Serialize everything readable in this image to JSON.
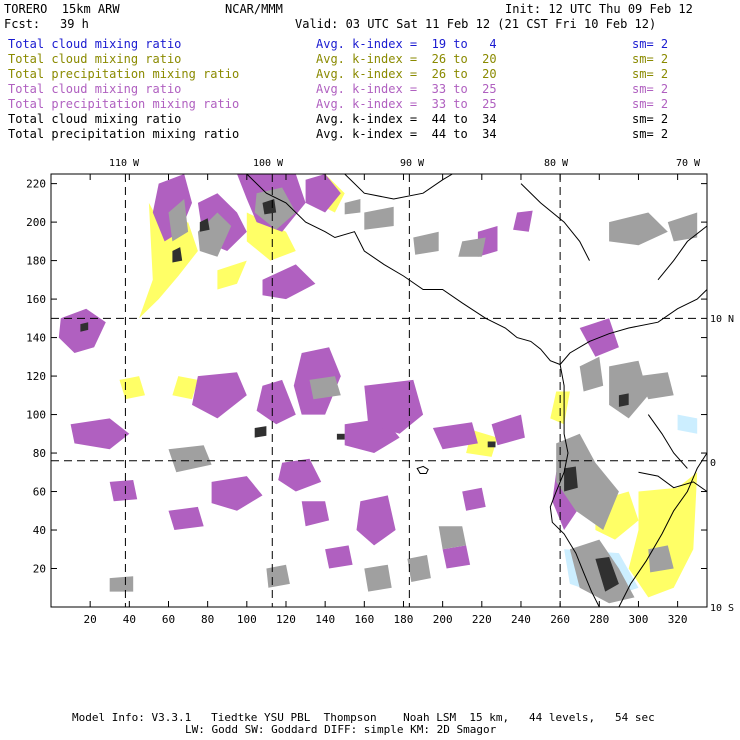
{
  "header": {
    "model_name": "TORERO  15km ARW",
    "center": "NCAR/MMM",
    "init": "Init: 12 UTC Thu 09 Feb 12",
    "fcst_label": "Fcst:",
    "fcst_value": "39 h",
    "valid": "Valid: 03 UTC Sat 11 Feb 12 (21 CST Fri 10 Feb 12)"
  },
  "legend_rows": [
    {
      "field": "Total cloud mixing ratio",
      "index": "Avg. k-index =  19 to   4",
      "sm": "sm= 2",
      "color": "#1a1ad0"
    },
    {
      "field": "Total cloud mixing ratio",
      "index": "Avg. k-index =  26 to  20",
      "sm": "sm= 2",
      "color": "#8a8a00"
    },
    {
      "field": "Total precipitation mixing ratio",
      "index": "Avg. k-index =  26 to  20",
      "sm": "sm= 2",
      "color": "#8a8a00"
    },
    {
      "field": "Total cloud mixing ratio",
      "index": "Avg. k-index =  33 to  25",
      "sm": "sm= 2",
      "color": "#b060c0"
    },
    {
      "field": "Total precipitation mixing ratio",
      "index": "Avg. k-index =  33 to  25",
      "sm": "sm= 2",
      "color": "#b060c0"
    },
    {
      "field": "Total cloud mixing ratio",
      "index": "Avg. k-index =  44 to  34",
      "sm": "sm= 2",
      "color": "#000000"
    },
    {
      "field": "Total precipitation mixing ratio",
      "index": "Avg. k-index =  44 to  34",
      "sm": "sm= 2",
      "color": "#000000"
    }
  ],
  "map": {
    "lon_labels": [
      "110 W",
      "100 W",
      "90 W",
      "80 W",
      "70 W"
    ],
    "lat_labels": [
      "10 N",
      "0",
      "10 S"
    ],
    "y_ticks": [
      "220",
      "200",
      "180",
      "160",
      "140",
      "120",
      "100",
      "80",
      "60",
      "40",
      "20"
    ],
    "x_ticks": [
      "20",
      "40",
      "60",
      "80",
      "100",
      "120",
      "140",
      "160",
      "180",
      "200",
      "220",
      "240",
      "260",
      "280",
      "300",
      "320"
    ],
    "y_range": [
      0,
      225
    ],
    "x_range": [
      0,
      335
    ],
    "grid_x": [
      38,
      113,
      183,
      260
    ],
    "grid_y": [
      150,
      76
    ],
    "colors": {
      "yellow": "#ffff66",
      "purple": "#b060c0",
      "gray": "#a0a0a0",
      "dark": "#303030",
      "lightblue": "#cceeff"
    }
  },
  "footer": {
    "line1": "Model Info: V3.3.1   Tiedtke YSU PBL  Thompson    Noah LSM  15 km,   44 levels,   54 sec",
    "line2": "LW: Godd SW: Goddard DIFF: simple KM: 2D Smagor"
  }
}
